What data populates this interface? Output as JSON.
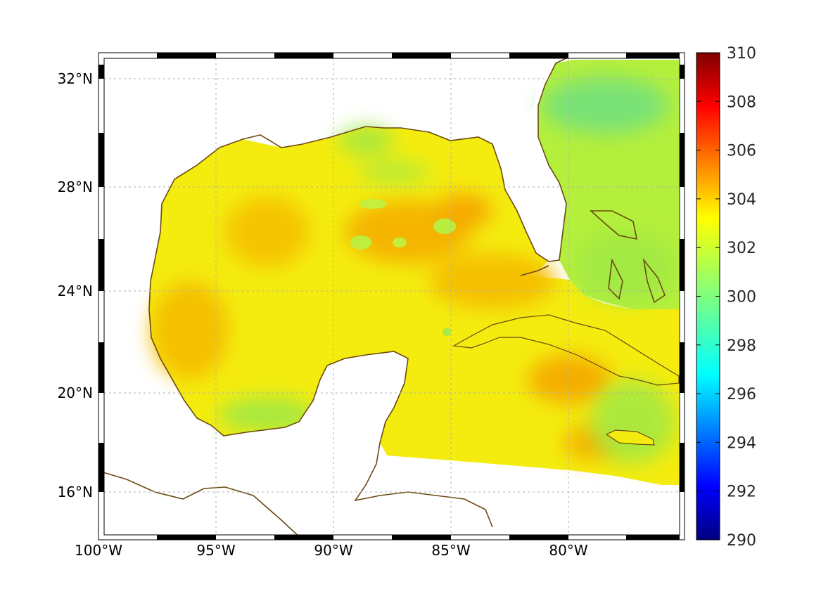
{
  "map": {
    "lon_ticks": [
      "100°W",
      "95°W",
      "90°W",
      "85°W",
      "80°W"
    ],
    "lat_ticks": [
      "32°N",
      "28°N",
      "24°N",
      "20°N",
      "16°N"
    ],
    "grid": true,
    "frame_style": "black-white checkered"
  },
  "colorbar": {
    "min": 290,
    "max": 310,
    "tick_labels": [
      "310",
      "308",
      "306",
      "304",
      "302",
      "300",
      "298",
      "296",
      "294",
      "292",
      "290"
    ],
    "colormap": "jet"
  },
  "colors": {
    "coastline": "#6b4a12",
    "field_dominant": "#f4ee10",
    "field_warm": "#f5b800",
    "field_cool": "#7fe46a"
  }
}
